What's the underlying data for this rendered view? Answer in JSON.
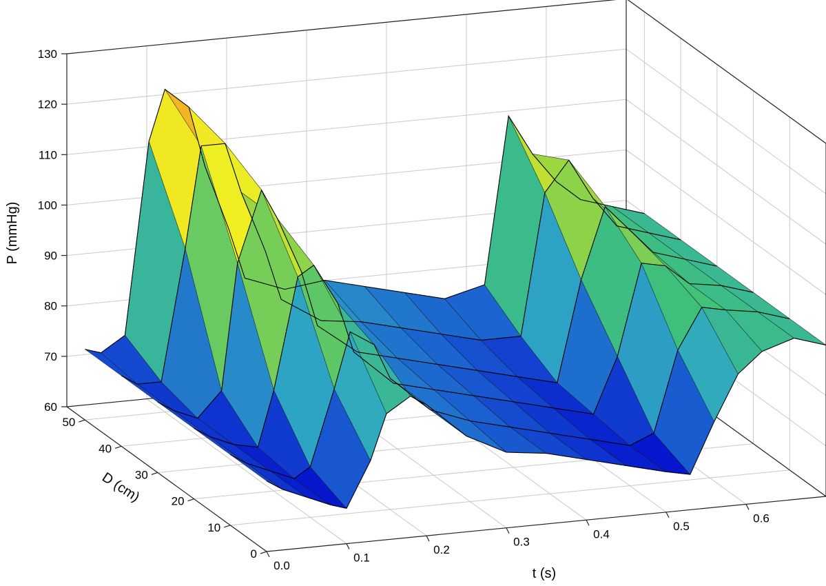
{
  "chart_data": {
    "type": "surface",
    "title": "",
    "xlabel": "t (s)",
    "ylabel": "D (cm)",
    "zlabel": "P (mmHg)",
    "xlim": [
      0.0,
      0.7
    ],
    "ylim": [
      0,
      55
    ],
    "zlim": [
      60,
      130
    ],
    "x_ticks": [
      "0.0",
      "0.1",
      "0.2",
      "0.3",
      "0.4",
      "0.5",
      "0.6"
    ],
    "y_ticks": [
      "0",
      "10",
      "20",
      "30",
      "40",
      "50"
    ],
    "z_ticks": [
      "60",
      "70",
      "80",
      "90",
      "100",
      "110",
      "120",
      "130"
    ],
    "grid": true,
    "colormap": [
      "#0000cc",
      "#1a5fd0",
      "#2fa7c4",
      "#3fc07a",
      "#a6d93a",
      "#f0ee22",
      "#f5a623"
    ],
    "series": [
      {
        "D": 0,
        "t": [
          0.0,
          0.02,
          0.05,
          0.08,
          0.1,
          0.13,
          0.15,
          0.18,
          0.2,
          0.25,
          0.3,
          0.35,
          0.4,
          0.45,
          0.5,
          0.53,
          0.56,
          0.59,
          0.62,
          0.66,
          0.7
        ],
        "P": [
          74,
          72,
          70,
          68,
          67,
          76,
          85,
          88,
          86,
          79,
          75,
          74,
          72,
          70,
          68,
          67,
          77,
          86,
          90,
          92,
          90
        ]
      },
      {
        "D": 10,
        "t": [
          0.0,
          0.02,
          0.05,
          0.08,
          0.1,
          0.13,
          0.15,
          0.18,
          0.2,
          0.25,
          0.3,
          0.35,
          0.4,
          0.45,
          0.5,
          0.53,
          0.56,
          0.59,
          0.62,
          0.66,
          0.7
        ],
        "P": [
          74,
          72,
          70,
          68,
          70,
          85,
          96,
          93,
          86,
          79,
          76,
          74,
          72,
          70,
          68,
          70,
          86,
          94,
          93,
          92,
          90
        ]
      },
      {
        "D": 20,
        "t": [
          0.0,
          0.02,
          0.05,
          0.08,
          0.1,
          0.13,
          0.15,
          0.18,
          0.2,
          0.25,
          0.3,
          0.35,
          0.4,
          0.45,
          0.5,
          0.53,
          0.56,
          0.59,
          0.62,
          0.66,
          0.7
        ],
        "P": [
          74,
          72,
          70,
          69,
          80,
          102,
          104,
          96,
          86,
          79,
          77,
          75,
          73,
          71,
          69,
          80,
          98,
          97,
          93,
          92,
          90
        ]
      },
      {
        "D": 30,
        "t": [
          0.0,
          0.02,
          0.05,
          0.08,
          0.1,
          0.13,
          0.15,
          0.18,
          0.2,
          0.25,
          0.3,
          0.35,
          0.4,
          0.45,
          0.5,
          0.53,
          0.56,
          0.59,
          0.62,
          0.66,
          0.7
        ],
        "P": [
          74,
          72,
          70,
          75,
          100,
          114,
          108,
          97,
          86,
          80,
          78,
          76,
          74,
          72,
          70,
          90,
          104,
          99,
          94,
          92,
          90
        ]
      },
      {
        "D": 40,
        "t": [
          0.0,
          0.02,
          0.05,
          0.08,
          0.1,
          0.13,
          0.15,
          0.18,
          0.2,
          0.25,
          0.3,
          0.35,
          0.4,
          0.45,
          0.5,
          0.53,
          0.56,
          0.59,
          0.62,
          0.66,
          0.7
        ],
        "P": [
          74,
          72,
          72,
          98,
          118,
          118,
          108,
          96,
          86,
          81,
          80,
          78,
          76,
          74,
          74,
          102,
          108,
          100,
          94,
          92,
          90
        ]
      },
      {
        "D": 50,
        "t": [
          0.0,
          0.02,
          0.05,
          0.08,
          0.1,
          0.13,
          0.15,
          0.18,
          0.2,
          0.25,
          0.3,
          0.35,
          0.4,
          0.45,
          0.5,
          0.53,
          0.56,
          0.59,
          0.62,
          0.66,
          0.7
        ],
        "P": [
          74,
          73,
          76,
          114,
          124,
          120,
          108,
          95,
          85,
          82,
          83,
          81,
          79,
          77,
          79,
          112,
          104,
          98,
          94,
          92,
          90
        ]
      }
    ]
  }
}
